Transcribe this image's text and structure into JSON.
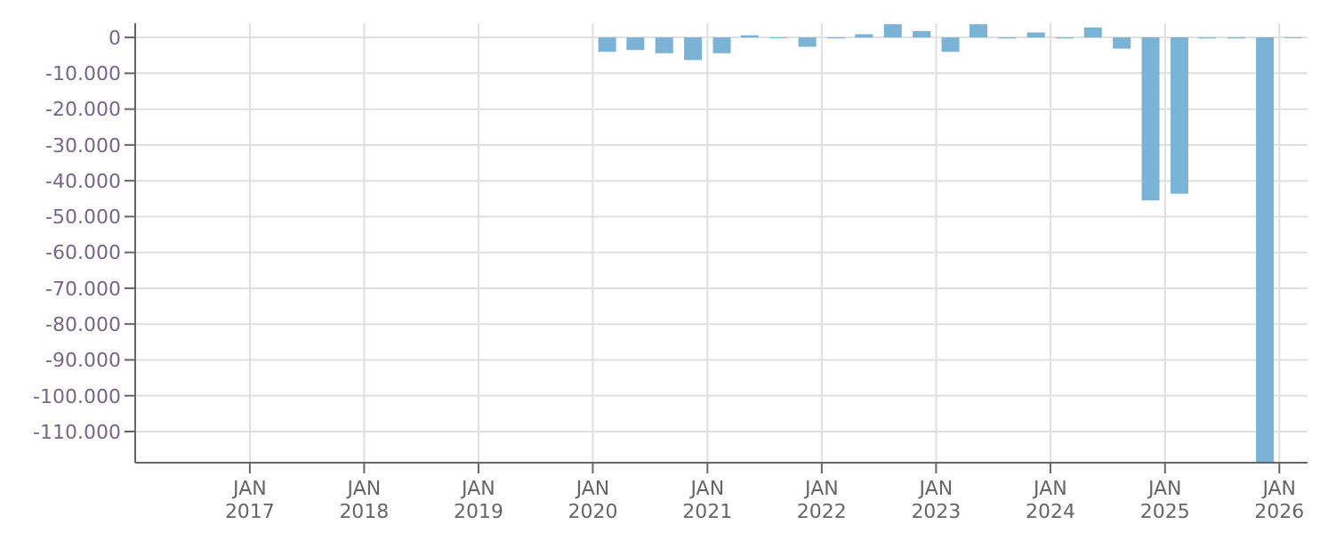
{
  "chart_data": {
    "type": "bar",
    "color": "#7ab3d5",
    "x": [
      "2020-02-15",
      "2020-05-15",
      "2020-08-15",
      "2020-11-15",
      "2021-02-15",
      "2021-05-15",
      "2021-08-15",
      "2021-11-15",
      "2022-02-15",
      "2022-05-15",
      "2022-08-15",
      "2022-11-15",
      "2023-02-15",
      "2023-05-15",
      "2023-08-15",
      "2023-11-15",
      "2024-02-15",
      "2024-05-15",
      "2024-08-15",
      "2024-11-15",
      "2025-02-15",
      "2025-05-15",
      "2025-08-15",
      "2025-11-15",
      "2026-02-15"
    ],
    "values": [
      -4000,
      -3500,
      -4400,
      -6300,
      -4400,
      600,
      -200,
      -2600,
      -300,
      900,
      3700,
      1800,
      -4000,
      3700,
      -300,
      1400,
      -300,
      2800,
      -3100,
      -45500,
      -43600,
      -300,
      -300,
      -118700,
      -200
    ],
    "xlim": [
      "2016-01-01",
      "2026-04-01"
    ],
    "xticks": [
      {
        "value": "2017-01-01",
        "label": "JAN 2017"
      },
      {
        "value": "2018-01-01",
        "label": "JAN 2018"
      },
      {
        "value": "2019-01-01",
        "label": "JAN 2019"
      },
      {
        "value": "2020-01-01",
        "label": "JAN 2020"
      },
      {
        "value": "2021-01-01",
        "label": "JAN 2021"
      },
      {
        "value": "2022-01-01",
        "label": "JAN 2022"
      },
      {
        "value": "2023-01-01",
        "label": "JAN 2023"
      },
      {
        "value": "2024-01-01",
        "label": "JAN 2024"
      },
      {
        "value": "2025-01-01",
        "label": "JAN 2025"
      },
      {
        "value": "2026-01-01",
        "label": "JAN 2026"
      }
    ],
    "ylim": [
      -118700,
      4000
    ],
    "yticks": [
      0,
      {
        "value": -10000,
        "label": "-10.000"
      },
      {
        "value": -20000,
        "label": "-20.000"
      },
      {
        "value": -30000,
        "label": "-30.000"
      },
      {
        "value": -40000,
        "label": "-40.000"
      },
      {
        "value": -50000,
        "label": "-50.000"
      },
      {
        "value": -60000,
        "label": "-60.000"
      },
      {
        "value": -70000,
        "label": "-70.000"
      },
      {
        "value": -80000,
        "label": "-80.000"
      },
      {
        "value": -90000,
        "label": "-90.000"
      },
      {
        "value": -100000,
        "label": "-100.000"
      },
      {
        "value": -110000,
        "label": "-110.000"
      }
    ],
    "grid": true
  }
}
